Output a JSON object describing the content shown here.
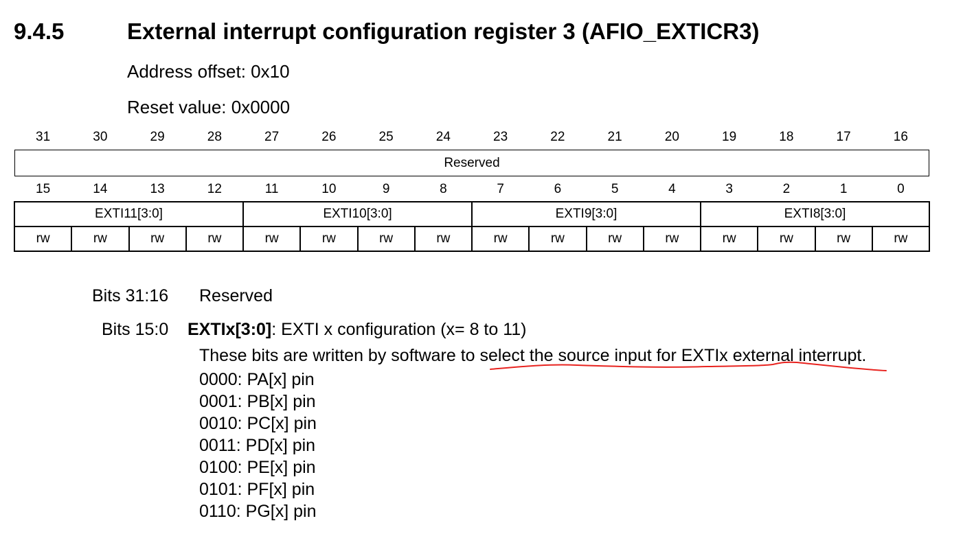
{
  "section": {
    "number": "9.4.5",
    "title": "External interrupt configuration register 3 (AFIO_EXTICR3)"
  },
  "address_offset": "Address offset: 0x10",
  "reset_value": "Reset value: 0x0000",
  "register": {
    "upper_bits": [
      "31",
      "30",
      "29",
      "28",
      "27",
      "26",
      "25",
      "24",
      "23",
      "22",
      "21",
      "20",
      "19",
      "18",
      "17",
      "16"
    ],
    "upper_field": "Reserved",
    "lower_bits": [
      "15",
      "14",
      "13",
      "12",
      "11",
      "10",
      "9",
      "8",
      "7",
      "6",
      "5",
      "4",
      "3",
      "2",
      "1",
      "0"
    ],
    "lower_fields": [
      "EXTI11[3:0]",
      "EXTI10[3:0]",
      "EXTI9[3:0]",
      "EXTI8[3:0]"
    ],
    "access": [
      "rw",
      "rw",
      "rw",
      "rw",
      "rw",
      "rw",
      "rw",
      "rw",
      "rw",
      "rw",
      "rw",
      "rw",
      "rw",
      "rw",
      "rw",
      "rw"
    ]
  },
  "description": {
    "reserved_bits": "Bits 31:16",
    "reserved_text": "Reserved",
    "field_bits": "Bits 15:0",
    "field_name": "EXTIx[3:0]",
    "field_title": ": EXTI x configuration (x= 8 to 11)",
    "text_before": "These bits are written by software to ",
    "text_underlined": "select the source input for EXTIx external interrupt.",
    "encodings": [
      "0000: PA[x] pin",
      "0001: PB[x] pin",
      "0010: PC[x] pin",
      "0011: PD[x] pin",
      "0100: PE[x] pin",
      "0101: PF[x] pin",
      "0110: PG[x] pin"
    ]
  },
  "annotation_color": "#e8231f"
}
